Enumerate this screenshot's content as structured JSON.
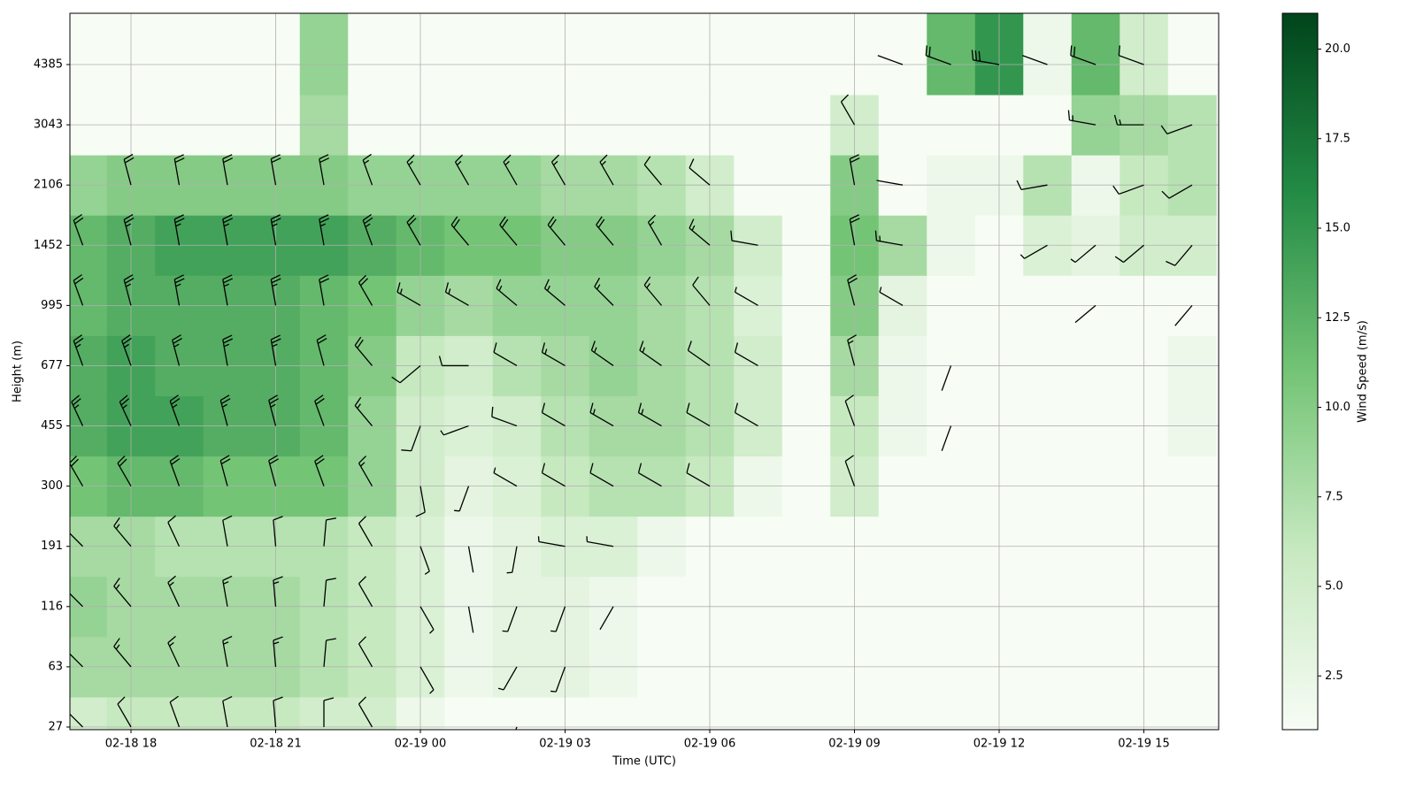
{
  "chart_data": {
    "type": "heatmap-barbs",
    "x_label": "Time (UTC)",
    "y_label": "Height (m)",
    "colorbar_label": "Wind Speed (m/s)",
    "x": [
      "02-18 17",
      "02-18 18",
      "02-18 19",
      "02-18 20",
      "02-18 21",
      "02-18 22",
      "02-18 23",
      "02-19 00",
      "02-19 01",
      "02-19 02",
      "02-19 03",
      "02-19 04",
      "02-19 05",
      "02-19 06",
      "02-19 07",
      "02-19 08",
      "02-19 09",
      "02-19 10",
      "02-19 11",
      "02-19 12",
      "02-19 13",
      "02-19 14",
      "02-19 15",
      "02-19 16"
    ],
    "xticks": [
      "02-18 18",
      "02-18 21",
      "02-19 00",
      "02-19 03",
      "02-19 06",
      "02-19 09",
      "02-19 12",
      "02-19 15"
    ],
    "levels": [
      27,
      63,
      116,
      191,
      300,
      455,
      677,
      995,
      1452,
      2106,
      3043,
      4385
    ],
    "speed": [
      [
        5,
        6,
        6,
        6,
        6,
        5,
        5,
        2,
        1,
        1,
        1,
        1,
        1,
        1,
        1,
        1,
        1,
        1,
        1,
        1,
        1,
        1,
        1,
        1
      ],
      [
        8,
        8,
        8,
        8,
        8,
        7,
        6,
        4,
        2,
        3,
        3,
        2,
        1,
        1,
        1,
        1,
        1,
        1,
        1,
        1,
        1,
        1,
        1,
        1
      ],
      [
        9,
        8,
        8,
        8,
        8,
        7,
        6,
        4,
        2,
        3,
        3,
        2,
        1,
        1,
        1,
        1,
        1,
        1,
        1,
        1,
        1,
        1,
        1,
        1
      ],
      [
        8,
        8,
        7,
        7,
        7,
        7,
        6,
        4,
        2,
        3,
        4,
        4,
        2,
        1,
        1,
        1,
        1,
        1,
        1,
        1,
        1,
        1,
        1,
        1
      ],
      [
        11,
        12,
        12,
        11,
        11,
        11,
        9,
        5,
        3,
        4,
        6,
        7,
        7,
        6,
        2,
        1,
        5,
        1,
        1,
        1,
        1,
        1,
        1,
        1
      ],
      [
        13,
        14,
        14,
        13,
        13,
        12,
        9,
        5,
        4,
        5,
        7,
        8,
        8,
        7,
        5,
        1,
        6,
        2,
        1,
        1,
        1,
        1,
        1,
        2
      ],
      [
        13,
        14,
        13,
        13,
        13,
        12,
        10,
        6,
        5,
        7,
        8,
        9,
        8,
        7,
        5,
        1,
        8,
        2,
        1,
        1,
        1,
        1,
        1,
        2
      ],
      [
        12,
        13,
        13,
        13,
        13,
        12,
        11,
        9,
        8,
        9,
        9,
        9,
        8,
        7,
        4,
        1,
        10,
        3,
        1,
        1,
        1,
        1,
        1,
        1
      ],
      [
        12,
        13,
        14,
        14,
        14,
        14,
        13,
        12,
        11,
        11,
        10,
        10,
        9,
        8,
        5,
        1,
        11,
        8,
        2,
        1,
        4,
        3,
        5,
        5
      ],
      [
        9,
        10,
        10,
        10,
        10,
        10,
        9,
        9,
        9,
        9,
        8,
        8,
        7,
        5,
        1,
        1,
        10,
        1,
        2,
        2,
        7,
        2,
        6,
        7
      ],
      [
        1,
        1,
        1,
        1,
        1,
        8,
        1,
        1,
        1,
        1,
        1,
        1,
        1,
        1,
        1,
        1,
        5,
        1,
        1,
        1,
        1,
        9,
        8,
        7
      ],
      [
        1,
        1,
        1,
        1,
        1,
        9,
        1,
        1,
        1,
        1,
        1,
        1,
        1,
        1,
        1,
        1,
        1,
        1,
        12,
        15,
        2,
        12,
        5,
        1
      ]
    ],
    "direction": [
      [
        315,
        330,
        340,
        350,
        355,
        0,
        330,
        null,
        null,
        200,
        null,
        null,
        null,
        null,
        null,
        null,
        null,
        null,
        null,
        null,
        null,
        null,
        null,
        null
      ],
      [
        315,
        320,
        335,
        350,
        355,
        5,
        330,
        150,
        null,
        210,
        200,
        null,
        null,
        null,
        null,
        null,
        null,
        null,
        null,
        null,
        null,
        null,
        null,
        null
      ],
      [
        315,
        320,
        335,
        350,
        355,
        5,
        330,
        150,
        170,
        200,
        200,
        210,
        null,
        null,
        null,
        null,
        null,
        null,
        null,
        null,
        null,
        null,
        null,
        null
      ],
      [
        315,
        320,
        335,
        350,
        355,
        5,
        330,
        160,
        170,
        190,
        280,
        280,
        null,
        null,
        null,
        null,
        null,
        null,
        null,
        null,
        null,
        null,
        null,
        null
      ],
      [
        330,
        330,
        340,
        345,
        345,
        340,
        330,
        170,
        200,
        300,
        300,
        300,
        300,
        300,
        null,
        null,
        340,
        null,
        null,
        null,
        null,
        null,
        null,
        null
      ],
      [
        335,
        335,
        340,
        345,
        345,
        340,
        320,
        200,
        250,
        290,
        300,
        300,
        300,
        300,
        300,
        null,
        340,
        null,
        200,
        null,
        null,
        null,
        null,
        null
      ],
      [
        340,
        340,
        345,
        350,
        350,
        345,
        320,
        230,
        270,
        300,
        300,
        305,
        305,
        305,
        300,
        null,
        345,
        null,
        200,
        null,
        null,
        null,
        null,
        null
      ],
      [
        340,
        345,
        350,
        350,
        350,
        350,
        330,
        300,
        300,
        310,
        310,
        315,
        320,
        320,
        300,
        null,
        345,
        300,
        null,
        null,
        null,
        230,
        null,
        220
      ],
      [
        340,
        345,
        350,
        350,
        350,
        350,
        340,
        330,
        320,
        320,
        320,
        320,
        330,
        310,
        280,
        null,
        350,
        280,
        null,
        null,
        240,
        230,
        230,
        220
      ],
      [
        null,
        345,
        350,
        350,
        350,
        350,
        340,
        330,
        330,
        330,
        330,
        330,
        320,
        310,
        null,
        null,
        350,
        280,
        null,
        null,
        260,
        null,
        250,
        240
      ],
      [
        null,
        null,
        null,
        null,
        null,
        null,
        null,
        null,
        null,
        null,
        null,
        null,
        null,
        null,
        null,
        null,
        330,
        null,
        null,
        null,
        null,
        280,
        270,
        250
      ],
      [
        null,
        null,
        null,
        null,
        null,
        null,
        null,
        null,
        null,
        null,
        null,
        null,
        null,
        null,
        null,
        null,
        null,
        290,
        290,
        280,
        290,
        290,
        290,
        null
      ]
    ],
    "colorbar_lim": [
      1,
      21
    ],
    "colorbar_ticks": [
      2.5,
      {
        "value": 5,
        "label": "5.0"
      },
      7.5,
      {
        "value": 10,
        "label": "10.0"
      },
      12.5,
      {
        "value": 15,
        "label": "15.0"
      },
      17.5,
      {
        "value": 20,
        "label": "20.0"
      }
    ],
    "colormap": [
      "#f7fcf5",
      "#c7e9c0",
      "#74c476",
      "#238b45",
      "#00441b"
    ],
    "barb_color": "#000000",
    "grid": true
  }
}
